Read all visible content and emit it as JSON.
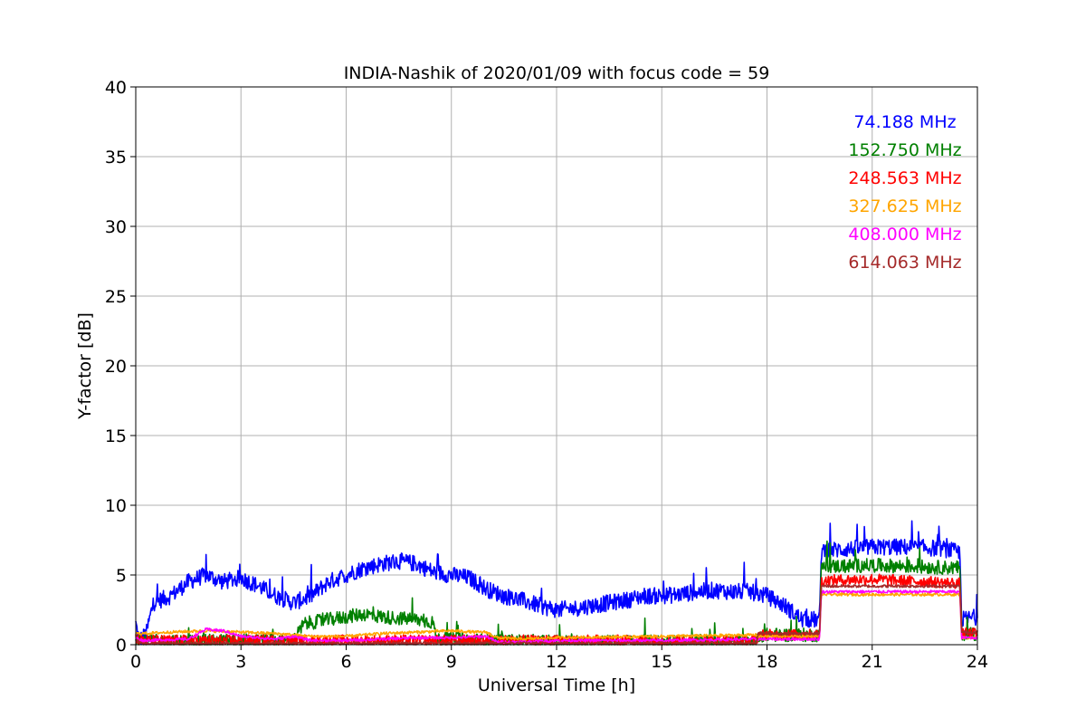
{
  "chart_data": {
    "type": "line",
    "title": "INDIA-Nashik of 2020/01/09 with focus code = 59",
    "xlabel": "Universal Time [h]",
    "ylabel": "Y-factor [dB]",
    "xlim": [
      0,
      24
    ],
    "ylim": [
      0,
      40
    ],
    "xticks": [
      0,
      3,
      6,
      9,
      12,
      15,
      18,
      21,
      24
    ],
    "yticks": [
      0,
      5,
      10,
      15,
      20,
      25,
      30,
      35,
      40
    ],
    "grid": true,
    "legend_placement": "top-right",
    "series": [
      {
        "name": "74.188 MHz",
        "color": "#0000ff",
        "x": [
          0,
          0.1,
          0.3,
          0.5,
          1.0,
          1.5,
          2.0,
          2.5,
          3.0,
          3.5,
          4.0,
          4.5,
          5.0,
          5.5,
          6.0,
          6.5,
          7.0,
          7.5,
          8.0,
          8.5,
          9.0,
          9.5,
          10.0,
          10.5,
          11.0,
          11.5,
          12.0,
          12.5,
          13.0,
          13.5,
          14.0,
          14.5,
          15.0,
          15.5,
          16.0,
          16.5,
          17.0,
          17.5,
          18.0,
          18.5,
          19.0,
          19.5,
          19.55,
          20.0,
          21.0,
          22.0,
          23.0,
          23.5,
          23.55,
          24.0
        ],
        "y": [
          1.5,
          0.3,
          0.8,
          3.0,
          3.5,
          4.5,
          5.0,
          4.5,
          4.8,
          4.2,
          3.5,
          3.0,
          3.5,
          4.5,
          5.0,
          5.5,
          5.8,
          6.0,
          5.8,
          5.2,
          5.0,
          4.8,
          4.0,
          3.5,
          3.2,
          2.8,
          2.5,
          2.6,
          2.8,
          3.0,
          3.2,
          3.5,
          3.5,
          3.6,
          3.8,
          3.9,
          3.8,
          3.8,
          3.5,
          2.8,
          1.8,
          1.8,
          6.8,
          6.8,
          7.0,
          7.0,
          6.9,
          6.6,
          1.8,
          2.0
        ],
        "noise": 0.6
      },
      {
        "name": "152.750 MHz",
        "color": "#008000",
        "x": [
          0,
          0.2,
          1.0,
          3.0,
          4.5,
          4.8,
          5.5,
          6.0,
          6.5,
          7.0,
          7.5,
          8.0,
          8.5,
          8.55,
          10.0,
          12.0,
          15.0,
          17.7,
          17.75,
          19.5,
          19.55,
          21.0,
          23.5,
          23.55,
          24.0
        ],
        "y": [
          0.6,
          0.3,
          0.2,
          0.3,
          0.3,
          1.5,
          1.8,
          2.0,
          2.2,
          2.0,
          1.9,
          1.8,
          1.6,
          0.4,
          0.3,
          0.2,
          0.2,
          0.2,
          0.7,
          0.7,
          5.6,
          5.7,
          5.5,
          0.8,
          0.8
        ],
        "noise": 0.5
      },
      {
        "name": "248.563 MHz",
        "color": "#ff0000",
        "x": [
          0,
          0.2,
          3.0,
          6.0,
          9.0,
          12.0,
          15.0,
          17.7,
          17.75,
          19.5,
          19.55,
          21.0,
          23.5,
          23.55,
          24.0
        ],
        "y": [
          0.5,
          0.3,
          0.3,
          0.3,
          0.3,
          0.3,
          0.3,
          0.3,
          0.7,
          0.7,
          4.6,
          4.7,
          4.4,
          0.8,
          0.8
        ],
        "noise": 0.4
      },
      {
        "name": "327.625 MHz",
        "color": "#ffa500",
        "x": [
          0,
          0.2,
          1.0,
          2.0,
          3.0,
          4.0,
          5.0,
          6.0,
          7.0,
          8.0,
          9.0,
          9.7,
          10.0,
          10.3,
          11.0,
          12.0,
          15.0,
          17.7,
          17.75,
          19.5,
          19.55,
          21.0,
          23.5,
          23.55,
          24.0
        ],
        "y": [
          0.8,
          0.8,
          0.9,
          1.0,
          0.9,
          0.8,
          0.6,
          0.6,
          0.8,
          0.9,
          1.0,
          0.9,
          0.9,
          0.5,
          0.4,
          0.5,
          0.6,
          0.7,
          0.6,
          0.6,
          3.6,
          3.6,
          3.6,
          0.5,
          0.5
        ],
        "noise": 0.1
      },
      {
        "name": "408.000 MHz",
        "color": "#ff00ff",
        "x": [
          0,
          0.2,
          1.5,
          2.0,
          2.5,
          3.0,
          4.0,
          4.5,
          5.0,
          6.0,
          7.0,
          8.0,
          9.0,
          10.0,
          10.3,
          11.0,
          12.0,
          15.0,
          17.7,
          17.75,
          19.5,
          19.55,
          21.0,
          23.5,
          23.55,
          24.0
        ],
        "y": [
          0.5,
          0.3,
          0.4,
          1.1,
          1.0,
          0.6,
          0.4,
          0.6,
          0.3,
          0.3,
          0.4,
          0.5,
          0.5,
          0.6,
          0.2,
          0.2,
          0.3,
          0.3,
          0.4,
          0.4,
          0.4,
          3.8,
          3.8,
          3.8,
          0.5,
          0.5
        ],
        "noise": 0.1
      },
      {
        "name": "614.063 MHz",
        "color": "#a52a2a",
        "x": [
          0,
          0.2,
          3.0,
          6.0,
          9.0,
          12.0,
          15.0,
          17.7,
          17.75,
          19.5,
          19.55,
          21.0,
          23.5,
          23.55,
          24.0
        ],
        "y": [
          0.3,
          0.1,
          0.1,
          0.1,
          0.1,
          0.1,
          0.1,
          0.1,
          0.8,
          0.8,
          4.2,
          4.2,
          4.2,
          0.9,
          0.9
        ],
        "noise": 0.1
      }
    ]
  }
}
